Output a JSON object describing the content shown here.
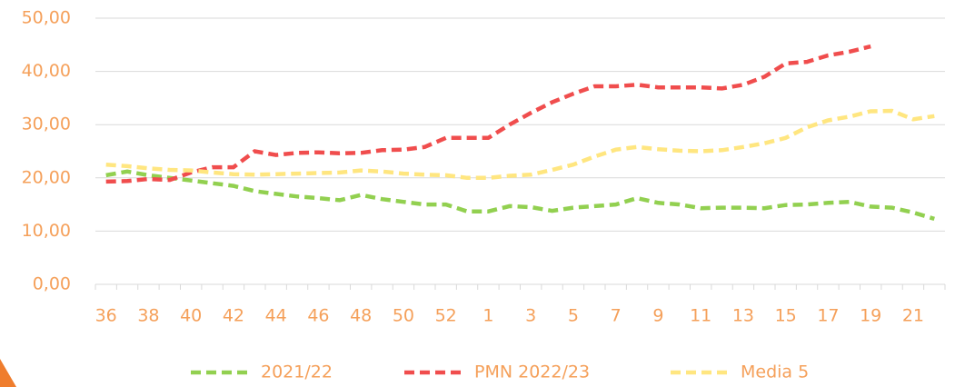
{
  "chart_data": {
    "type": "line",
    "categories": [
      "36",
      null,
      "38",
      null,
      "40",
      null,
      "42",
      null,
      "44",
      null,
      "46",
      null,
      "48",
      null,
      "50",
      null,
      "52",
      null,
      "1",
      null,
      "3",
      null,
      "5",
      null,
      "7",
      null,
      "9",
      null,
      "11",
      null,
      "13",
      null,
      "15",
      null,
      "17",
      null,
      "19",
      null,
      "21",
      null
    ],
    "series": [
      {
        "name": "2021/22",
        "color": "#92d050",
        "values": [
          20.5,
          21.2,
          20.5,
          20,
          19.5,
          19,
          18.5,
          17.5,
          17,
          16.5,
          16.2,
          15.8,
          16.8,
          16,
          15.5,
          15,
          15,
          13.7,
          13.7,
          14.7,
          14.5,
          13.8,
          14.4,
          14.7,
          15,
          16.2,
          15.3,
          15,
          14.3,
          14.4,
          14.4,
          14.3,
          14.9,
          15,
          15.3,
          15.5,
          14.6,
          14.4,
          13.5,
          12.3
        ]
      },
      {
        "name": "PMN 2022/23",
        "color": "#f04d4d",
        "values": [
          19.3,
          19.4,
          19.8,
          19.6,
          21,
          22,
          22,
          25,
          24.3,
          24.7,
          24.8,
          24.6,
          24.7,
          25.2,
          25.3,
          25.8,
          27.5,
          27.5,
          27.5,
          30,
          32.2,
          34.2,
          35.8,
          37.2,
          37.2,
          37.5,
          37,
          37,
          37,
          36.8,
          37.5,
          39,
          41.5,
          41.8,
          43,
          43.7,
          44.7,
          null,
          null,
          null
        ]
      },
      {
        "name": "Media 5",
        "color": "#ffe680",
        "values": [
          22.5,
          22.2,
          21.8,
          21.5,
          21.4,
          21,
          20.7,
          20.6,
          20.7,
          20.8,
          20.9,
          21,
          21.4,
          21.2,
          20.8,
          20.6,
          20.5,
          20,
          20,
          20.4,
          20.6,
          21.5,
          22.5,
          24,
          25.3,
          25.8,
          25.4,
          25.1,
          25,
          25.2,
          25.8,
          26.5,
          27.5,
          29.5,
          30.8,
          31.5,
          32.5,
          32.6,
          31,
          31.6
        ]
      }
    ],
    "ylim": [
      0,
      50
    ],
    "yticks": [
      {
        "value": 0,
        "label": "0,00"
      },
      {
        "value": 10,
        "label": "10,00"
      },
      {
        "value": 20,
        "label": "20,00"
      },
      {
        "value": 30,
        "label": "30,00"
      },
      {
        "value": 40,
        "label": "40,00"
      },
      {
        "value": 50,
        "label": "50,00"
      }
    ],
    "grid": true,
    "legend": "bottom"
  }
}
